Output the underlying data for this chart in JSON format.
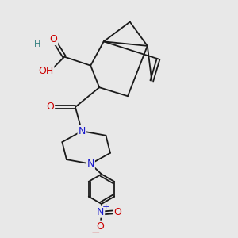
{
  "bg_color": "#e8e8e8",
  "bond_color": "#1a1a1a",
  "bond_width": 1.3,
  "atom_colors": {
    "O": "#cc0000",
    "N": "#1a1acc",
    "H": "#2a7a7a",
    "C": "#1a1a1a"
  },
  "font_size_atom": 9,
  "figsize": [
    3.0,
    3.0
  ],
  "dpi": 100
}
